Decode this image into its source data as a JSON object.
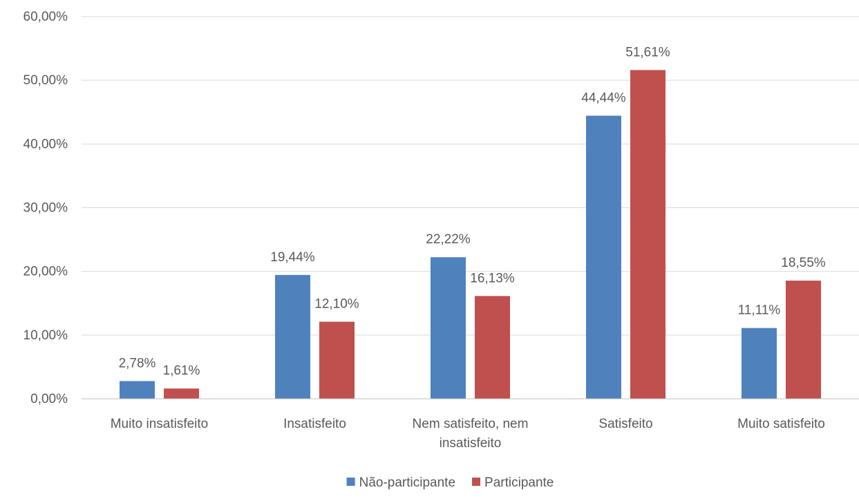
{
  "chart_data": {
    "type": "bar",
    "categories": [
      [
        "Muito insatisfeito"
      ],
      [
        "Insatisfeito"
      ],
      [
        "Nem satisfeito, nem",
        "insatisfeito"
      ],
      [
        "Satisfeito"
      ],
      [
        "Muito satisfeito"
      ]
    ],
    "series": [
      {
        "name": "Não-participante",
        "color": "#4f81bd",
        "values": [
          2.78,
          19.44,
          22.22,
          44.44,
          11.11
        ],
        "labels": [
          "2,78%",
          "19,44%",
          "22,22%",
          "44,44%",
          "11,11%"
        ]
      },
      {
        "name": "Participante",
        "color": "#c0504d",
        "values": [
          1.61,
          12.1,
          16.13,
          51.61,
          18.55
        ],
        "labels": [
          "1,61%",
          "12,10%",
          "16,13%",
          "51,61%",
          "18,55%"
        ]
      }
    ],
    "ylim": [
      0,
      60
    ],
    "yticks": [
      0,
      10,
      20,
      30,
      40,
      50,
      60
    ],
    "ytick_labels": [
      "0,00%",
      "10,00%",
      "20,00%",
      "30,00%",
      "40,00%",
      "50,00%",
      "60,00%"
    ],
    "grid": true,
    "grid_color": "#d9d9d9",
    "legend_position": "bottom"
  }
}
